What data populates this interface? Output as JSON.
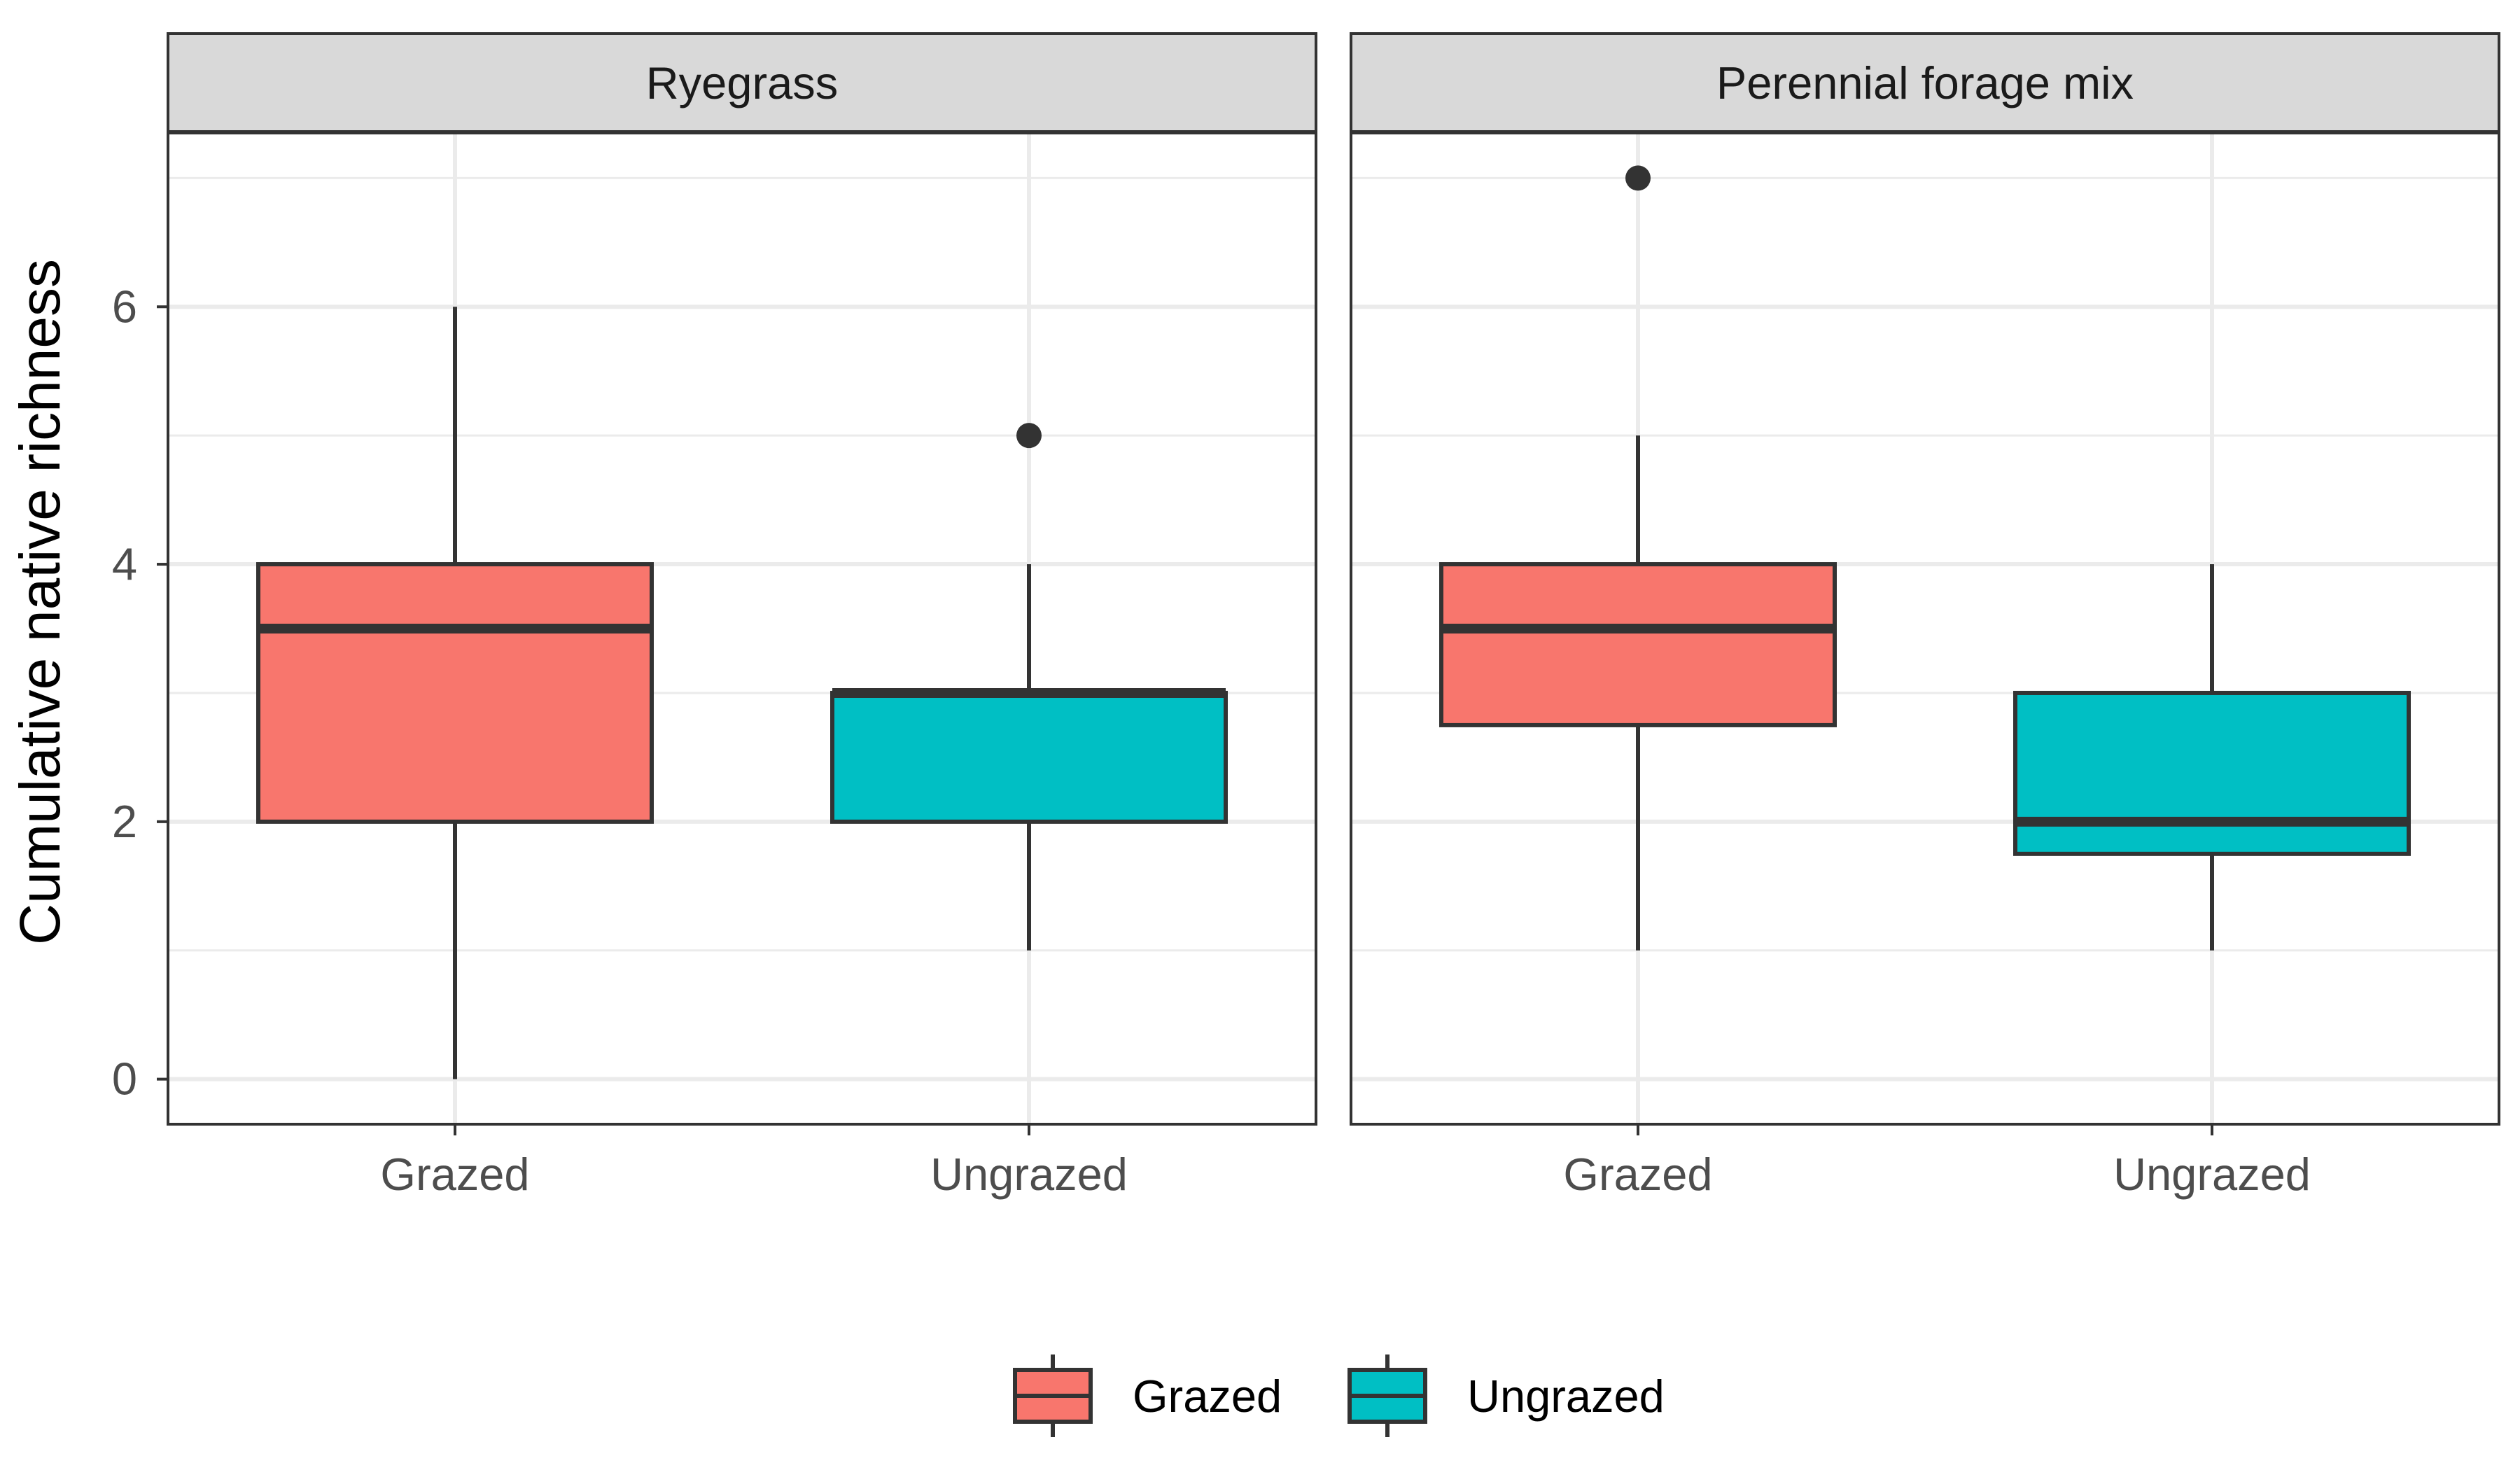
{
  "chart_data": {
    "type": "boxplot",
    "ylabel": "Cumulative native richness",
    "xlabel": "",
    "ylim": [
      -0.35,
      7.35
    ],
    "yticks": [
      0,
      2,
      4,
      6
    ],
    "yticks_labels": [
      "0",
      "2",
      "4",
      "6"
    ],
    "categories": [
      "Grazed",
      "Ungrazed"
    ],
    "grid": true,
    "legend_position": "bottom",
    "colors": {
      "Grazed": "#F8766D",
      "Ungrazed": "#00BFC4"
    },
    "legend": [
      {
        "label": "Grazed",
        "color": "#F8766D"
      },
      {
        "label": "Ungrazed",
        "color": "#00BFC4"
      }
    ],
    "panels": [
      {
        "title": "Ryegrass",
        "boxes": [
          {
            "group": "Grazed",
            "whisker_low": 0,
            "q1": 2,
            "median": 3.5,
            "q3": 4,
            "whisker_high": 6,
            "outliers": []
          },
          {
            "group": "Ungrazed",
            "whisker_low": 1,
            "q1": 2,
            "median": 3,
            "q3": 3,
            "whisker_high": 4,
            "outliers": [
              5
            ]
          }
        ]
      },
      {
        "title": "Perennial forage mix",
        "boxes": [
          {
            "group": "Grazed",
            "whisker_low": 1,
            "q1": 2.75,
            "median": 3.5,
            "q3": 4,
            "whisker_high": 5,
            "outliers": [
              7
            ]
          },
          {
            "group": "Ungrazed",
            "whisker_low": 1,
            "q1": 1.75,
            "median": 2,
            "q3": 3,
            "whisker_high": 4,
            "outliers": []
          }
        ]
      }
    ]
  }
}
